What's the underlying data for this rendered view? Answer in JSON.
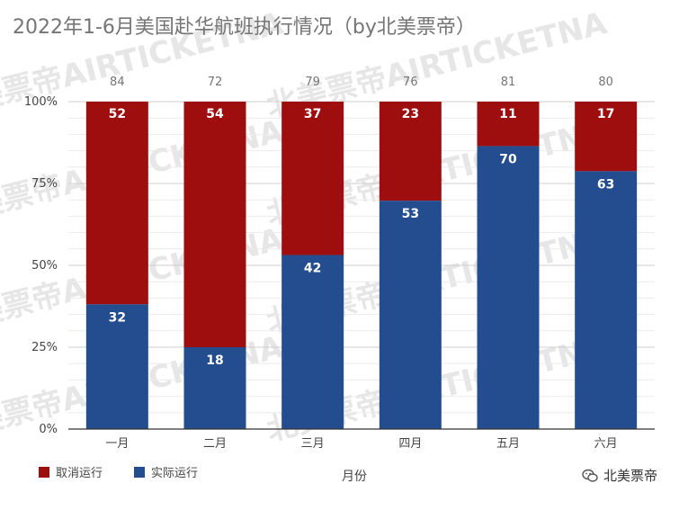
{
  "colors": {
    "cancelled": "#9e0e0e",
    "operated": "#234d8f",
    "grid": "#d9d9d9",
    "axis_text": "#444444",
    "total_text": "#757575",
    "watermark": "#e6e6e6"
  },
  "chart_data": {
    "type": "bar",
    "stacked": "percent",
    "title": "2022年1-6月美国赴华航班执行情况（by北美票帝）",
    "xlabel": "月份",
    "ylabel": "",
    "categories": [
      "一月",
      "二月",
      "三月",
      "四月",
      "五月",
      "六月"
    ],
    "totals": [
      84,
      72,
      79,
      76,
      81,
      80
    ],
    "series": [
      {
        "name": "实际运行",
        "values": [
          32,
          18,
          42,
          53,
          70,
          63
        ],
        "color": "#234d8f"
      },
      {
        "name": "取消运行",
        "values": [
          52,
          54,
          37,
          23,
          11,
          17
        ],
        "color": "#9e0e0e"
      }
    ],
    "yticks": [
      "0%",
      "25%",
      "50%",
      "75%",
      "100%"
    ],
    "ylim": [
      0,
      1
    ],
    "legend_position": "bottom-left",
    "legend": [
      "取消运行",
      "实际运行"
    ],
    "grid": true
  },
  "watermark": {
    "text": "北美票帝AIRTICKETNA"
  },
  "brand": {
    "name": "北美票帝",
    "icon": "wechat-icon"
  }
}
